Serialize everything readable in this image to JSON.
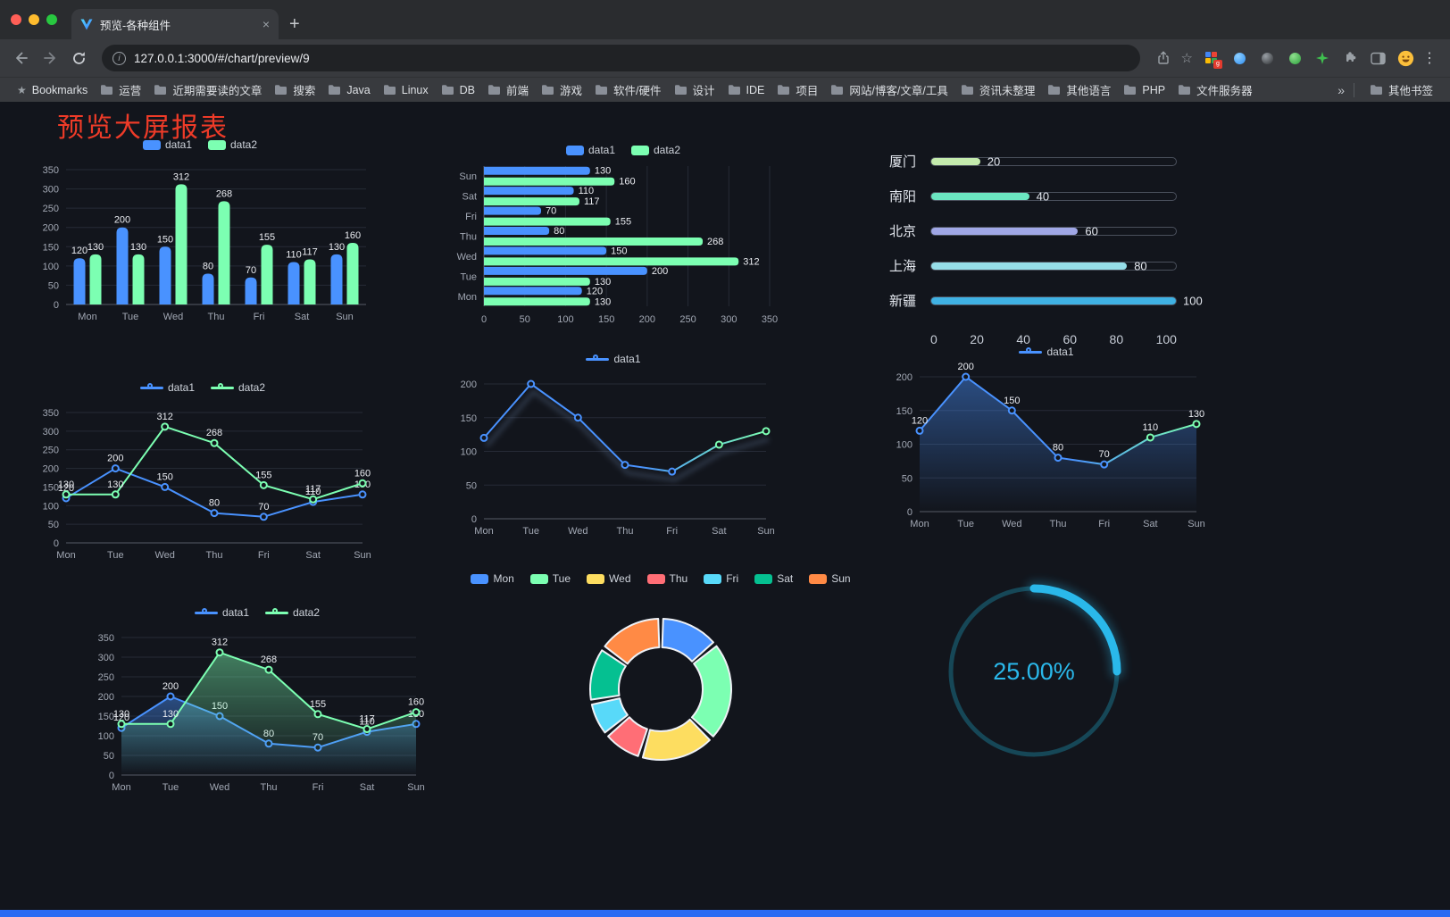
{
  "browser": {
    "tab_title": "预览-各种组件",
    "url": "127.0.0.1:3000/#/chart/preview/9",
    "bookmarks": [
      {
        "label": "Bookmarks",
        "icon": "star"
      },
      {
        "label": "运营",
        "icon": "folder"
      },
      {
        "label": "近期需要读的文章",
        "icon": "folder"
      },
      {
        "label": "搜索",
        "icon": "folder"
      },
      {
        "label": "Java",
        "icon": "folder"
      },
      {
        "label": "Linux",
        "icon": "folder"
      },
      {
        "label": "DB",
        "icon": "folder"
      },
      {
        "label": "前端",
        "icon": "folder"
      },
      {
        "label": "游戏",
        "icon": "folder"
      },
      {
        "label": "软件/硬件",
        "icon": "folder"
      },
      {
        "label": "设计",
        "icon": "folder"
      },
      {
        "label": "IDE",
        "icon": "folder"
      },
      {
        "label": "项目",
        "icon": "folder"
      },
      {
        "label": "网站/博客/文章/工具",
        "icon": "folder"
      },
      {
        "label": "资讯未整理",
        "icon": "folder"
      },
      {
        "label": "其他语言",
        "icon": "folder"
      },
      {
        "label": "PHP",
        "icon": "folder"
      },
      {
        "label": "文件服务器",
        "icon": "folder"
      }
    ],
    "other_bookmarks": "其他书签"
  },
  "icons": {
    "new_tab": "+",
    "tab_close": "×",
    "bookmark_star": "☆",
    "menu_kebab": "⋮",
    "overflow_chevron": "»",
    "bookmarks_star": "★",
    "site_info": "i",
    "extension_badge": "g"
  },
  "page": {
    "title": "预览大屏报表",
    "title_color": "#ee3b28",
    "background": "#12151c",
    "footer_color": "#2b6bf3"
  },
  "chart_data": [
    {
      "id": "bar-grouped",
      "type": "bar",
      "categories": [
        "Mon",
        "Tue",
        "Wed",
        "Thu",
        "Fri",
        "Sat",
        "Sun"
      ],
      "series": [
        {
          "name": "data1",
          "color": "#4992ff",
          "values": [
            120,
            200,
            150,
            80,
            70,
            110,
            130
          ]
        },
        {
          "name": "data2",
          "color": "#7cffb2",
          "values": [
            130,
            130,
            312,
            268,
            155,
            117,
            160
          ]
        }
      ],
      "ylim": [
        0,
        350
      ],
      "ytick": 50,
      "value_labels": true
    },
    {
      "id": "hbar-grouped",
      "type": "hbar",
      "categories": [
        "Mon",
        "Tue",
        "Wed",
        "Thu",
        "Fri",
        "Sat",
        "Sun"
      ],
      "series": [
        {
          "name": "data1",
          "color": "#4992ff",
          "values": [
            120,
            200,
            150,
            80,
            70,
            110,
            130
          ]
        },
        {
          "name": "data2",
          "color": "#7cffb2",
          "values": [
            130,
            130,
            312,
            268,
            155,
            117,
            160
          ]
        }
      ],
      "xlim": [
        0,
        350
      ],
      "xtick": 50,
      "value_labels": true
    },
    {
      "id": "progress-bars",
      "type": "progress",
      "items": [
        {
          "label": "厦门",
          "value": 20,
          "color": "#c4ebad"
        },
        {
          "label": "南阳",
          "value": 40,
          "color": "#6be6c1"
        },
        {
          "label": "北京",
          "value": 60,
          "color": "#a0a7e6"
        },
        {
          "label": "上海",
          "value": 80,
          "color": "#96dee8"
        },
        {
          "label": "新疆",
          "value": 100,
          "color": "#3fb1e3"
        }
      ],
      "xlim": [
        0,
        100
      ],
      "xticks": [
        0,
        20,
        40,
        60,
        80,
        100
      ]
    },
    {
      "id": "line-two-series",
      "type": "line",
      "categories": [
        "Mon",
        "Tue",
        "Wed",
        "Thu",
        "Fri",
        "Sat",
        "Sun"
      ],
      "series": [
        {
          "name": "data1",
          "color": "#4992ff",
          "values": [
            120,
            200,
            150,
            80,
            70,
            110,
            130
          ]
        },
        {
          "name": "data2",
          "color": "#7cffb2",
          "values": [
            130,
            130,
            312,
            268,
            155,
            117,
            160
          ]
        }
      ],
      "ylim": [
        0,
        350
      ],
      "ytick": 50,
      "value_labels": true
    },
    {
      "id": "line-gradient",
      "type": "line",
      "categories": [
        "Mon",
        "Tue",
        "Wed",
        "Thu",
        "Fri",
        "Sat",
        "Sun"
      ],
      "series": [
        {
          "name": "data1",
          "color": "#4992ff",
          "color_end": "#7cffb2",
          "shadow": true,
          "values": [
            120,
            200,
            150,
            80,
            70,
            110,
            130
          ]
        }
      ],
      "ylim": [
        0,
        200
      ],
      "ytick": 50,
      "value_labels": false
    },
    {
      "id": "area-single",
      "type": "line",
      "categories": [
        "Mon",
        "Tue",
        "Wed",
        "Thu",
        "Fri",
        "Sat",
        "Sun"
      ],
      "series": [
        {
          "name": "data1",
          "color": "#4992ff",
          "color_end": "#7cffb2",
          "area": true,
          "values": [
            120,
            200,
            150,
            80,
            70,
            110,
            130
          ]
        }
      ],
      "ylim": [
        0,
        200
      ],
      "ytick": 50,
      "value_labels": true
    },
    {
      "id": "area-two-series",
      "type": "line",
      "categories": [
        "Mon",
        "Tue",
        "Wed",
        "Thu",
        "Fri",
        "Sat",
        "Sun"
      ],
      "series": [
        {
          "name": "data1",
          "color": "#4992ff",
          "area": true,
          "values": [
            120,
            200,
            150,
            80,
            70,
            110,
            130
          ]
        },
        {
          "name": "data2",
          "color": "#7cffb2",
          "area": true,
          "values": [
            130,
            130,
            312,
            268,
            155,
            117,
            160
          ]
        }
      ],
      "ylim": [
        0,
        350
      ],
      "ytick": 50,
      "value_labels": true
    },
    {
      "id": "donut",
      "type": "donut",
      "legend": [
        "Mon",
        "Tue",
        "Wed",
        "Thu",
        "Fri",
        "Sat",
        "Sun"
      ],
      "values": [
        120,
        200,
        150,
        80,
        70,
        110,
        130
      ],
      "colors": [
        "#4992ff",
        "#7cffb2",
        "#fddd60",
        "#ff6e76",
        "#58d9f9",
        "#05c091",
        "#ff8a45"
      ]
    },
    {
      "id": "gauge",
      "type": "gauge",
      "percent": 25,
      "label": "25.00%",
      "color": "#2ab8ea",
      "track_color": "#164757"
    }
  ]
}
